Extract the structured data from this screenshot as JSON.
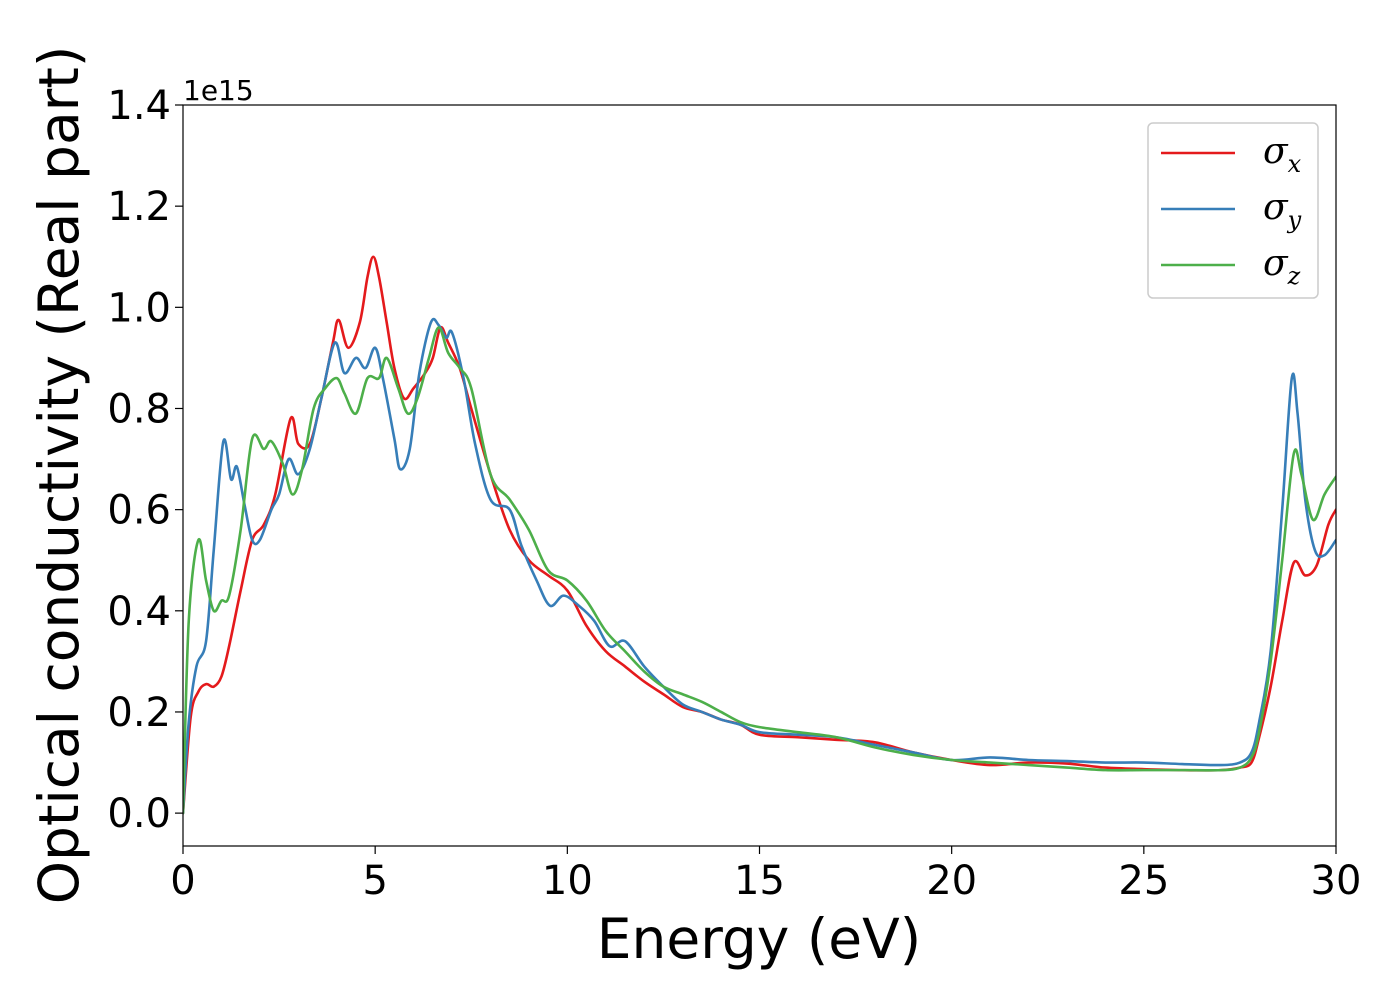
{
  "chart_data": {
    "type": "line",
    "xlabel": "Energy (eV)",
    "ylabel": "Optical conductivity (Real part)",
    "y_offset_label": "1e15",
    "xlim": [
      0,
      30
    ],
    "ylim": [
      -0.065,
      1.4
    ],
    "xticks": [
      0,
      5,
      10,
      15,
      20,
      25,
      30
    ],
    "xtick_labels": [
      "0",
      "5",
      "10",
      "15",
      "20",
      "25",
      "30"
    ],
    "yticks": [
      0.0,
      0.2,
      0.4,
      0.6,
      0.8,
      1.0,
      1.2,
      1.4
    ],
    "ytick_labels": [
      "0.0",
      "0.2",
      "0.4",
      "0.6",
      "0.8",
      "1.0",
      "1.2",
      "1.4"
    ],
    "grid": false,
    "legend_position": "top-right",
    "series": [
      {
        "name": "σx",
        "symbol": "σ",
        "subscript": "x",
        "color": "#e41a1c",
        "x": [
          0,
          0.2,
          0.4,
          0.6,
          0.8,
          1.0,
          1.2,
          1.5,
          1.8,
          2.1,
          2.4,
          2.8,
          3.0,
          3.3,
          3.6,
          3.9,
          4.05,
          4.3,
          4.6,
          4.8,
          4.95,
          5.1,
          5.3,
          5.5,
          5.75,
          6.0,
          6.3,
          6.5,
          6.7,
          6.9,
          7.2,
          7.5,
          8.0,
          8.5,
          9.0,
          9.5,
          10.0,
          10.5,
          11.0,
          11.5,
          12.0,
          12.5,
          13.0,
          13.5,
          14.0,
          14.5,
          15.0,
          16.0,
          17.0,
          18.0,
          19.0,
          20.0,
          21.0,
          22.0,
          23.0,
          24.0,
          25.0,
          26.0,
          27.0,
          27.5,
          27.8,
          28.0,
          28.3,
          28.6,
          28.9,
          29.2,
          29.5,
          29.8,
          30.0
        ],
        "y": [
          0.0,
          0.19,
          0.24,
          0.255,
          0.25,
          0.27,
          0.33,
          0.44,
          0.54,
          0.57,
          0.63,
          0.78,
          0.73,
          0.73,
          0.82,
          0.93,
          0.975,
          0.92,
          0.97,
          1.06,
          1.1,
          1.06,
          0.97,
          0.88,
          0.82,
          0.84,
          0.87,
          0.9,
          0.96,
          0.93,
          0.88,
          0.8,
          0.67,
          0.56,
          0.5,
          0.47,
          0.44,
          0.37,
          0.32,
          0.29,
          0.26,
          0.235,
          0.21,
          0.2,
          0.185,
          0.175,
          0.155,
          0.15,
          0.145,
          0.14,
          0.12,
          0.105,
          0.095,
          0.1,
          0.098,
          0.09,
          0.087,
          0.085,
          0.085,
          0.09,
          0.1,
          0.15,
          0.25,
          0.38,
          0.495,
          0.47,
          0.49,
          0.57,
          0.6
        ]
      },
      {
        "name": "σy",
        "symbol": "σ",
        "subscript": "y",
        "color": "#377eb8",
        "x": [
          0,
          0.15,
          0.35,
          0.6,
          0.8,
          1.05,
          1.25,
          1.4,
          1.6,
          1.8,
          2.0,
          2.3,
          2.5,
          2.75,
          3.0,
          3.3,
          3.6,
          3.95,
          4.2,
          4.5,
          4.75,
          5.0,
          5.2,
          5.5,
          5.65,
          5.9,
          6.15,
          6.45,
          6.65,
          6.85,
          7.0,
          7.3,
          7.6,
          8.0,
          8.5,
          8.8,
          9.2,
          9.55,
          9.9,
          10.3,
          10.7,
          11.1,
          11.5,
          12.0,
          12.5,
          13.0,
          13.5,
          14.0,
          14.5,
          15.0,
          16.0,
          17.0,
          18.0,
          19.0,
          20.0,
          21.0,
          22.0,
          23.0,
          24.0,
          25.0,
          26.0,
          27.0,
          27.5,
          27.8,
          28.0,
          28.3,
          28.6,
          28.85,
          29.0,
          29.2,
          29.45,
          29.7,
          30.0
        ],
        "y": [
          0.0,
          0.18,
          0.29,
          0.34,
          0.52,
          0.735,
          0.66,
          0.685,
          0.61,
          0.54,
          0.54,
          0.6,
          0.63,
          0.7,
          0.67,
          0.72,
          0.82,
          0.93,
          0.87,
          0.9,
          0.88,
          0.92,
          0.86,
          0.74,
          0.68,
          0.72,
          0.87,
          0.97,
          0.965,
          0.94,
          0.95,
          0.86,
          0.73,
          0.62,
          0.6,
          0.53,
          0.46,
          0.41,
          0.43,
          0.41,
          0.38,
          0.33,
          0.34,
          0.29,
          0.25,
          0.215,
          0.2,
          0.185,
          0.175,
          0.16,
          0.155,
          0.15,
          0.135,
          0.12,
          0.105,
          0.11,
          0.105,
          0.103,
          0.1,
          0.1,
          0.097,
          0.095,
          0.1,
          0.12,
          0.18,
          0.32,
          0.6,
          0.86,
          0.79,
          0.62,
          0.52,
          0.51,
          0.54
        ]
      },
      {
        "name": "σz",
        "symbol": "σ",
        "subscript": "z",
        "color": "#4daf4a",
        "x": [
          0,
          0.15,
          0.4,
          0.6,
          0.8,
          1.0,
          1.2,
          1.5,
          1.8,
          2.1,
          2.3,
          2.6,
          2.85,
          3.1,
          3.4,
          3.7,
          4.0,
          4.2,
          4.5,
          4.8,
          5.1,
          5.3,
          5.6,
          5.85,
          6.1,
          6.4,
          6.65,
          6.9,
          7.2,
          7.5,
          8.0,
          8.5,
          9.0,
          9.5,
          10.0,
          10.5,
          11.0,
          11.5,
          12.0,
          12.5,
          13.0,
          13.5,
          14.0,
          14.5,
          15.0,
          16.0,
          17.0,
          18.0,
          19.0,
          20.0,
          21.0,
          22.0,
          23.0,
          24.0,
          25.0,
          26.0,
          27.0,
          27.5,
          27.8,
          28.0,
          28.3,
          28.6,
          28.9,
          29.1,
          29.4,
          29.7,
          30.0
        ],
        "y": [
          0.0,
          0.38,
          0.54,
          0.46,
          0.4,
          0.42,
          0.43,
          0.56,
          0.74,
          0.72,
          0.735,
          0.69,
          0.63,
          0.68,
          0.8,
          0.84,
          0.86,
          0.83,
          0.79,
          0.86,
          0.86,
          0.9,
          0.84,
          0.79,
          0.82,
          0.9,
          0.96,
          0.91,
          0.88,
          0.84,
          0.67,
          0.62,
          0.56,
          0.48,
          0.46,
          0.42,
          0.36,
          0.32,
          0.28,
          0.25,
          0.235,
          0.22,
          0.2,
          0.18,
          0.17,
          0.16,
          0.15,
          0.13,
          0.115,
          0.105,
          0.1,
          0.095,
          0.09,
          0.085,
          0.085,
          0.085,
          0.085,
          0.09,
          0.11,
          0.16,
          0.3,
          0.5,
          0.71,
          0.67,
          0.58,
          0.63,
          0.665
        ]
      }
    ]
  }
}
